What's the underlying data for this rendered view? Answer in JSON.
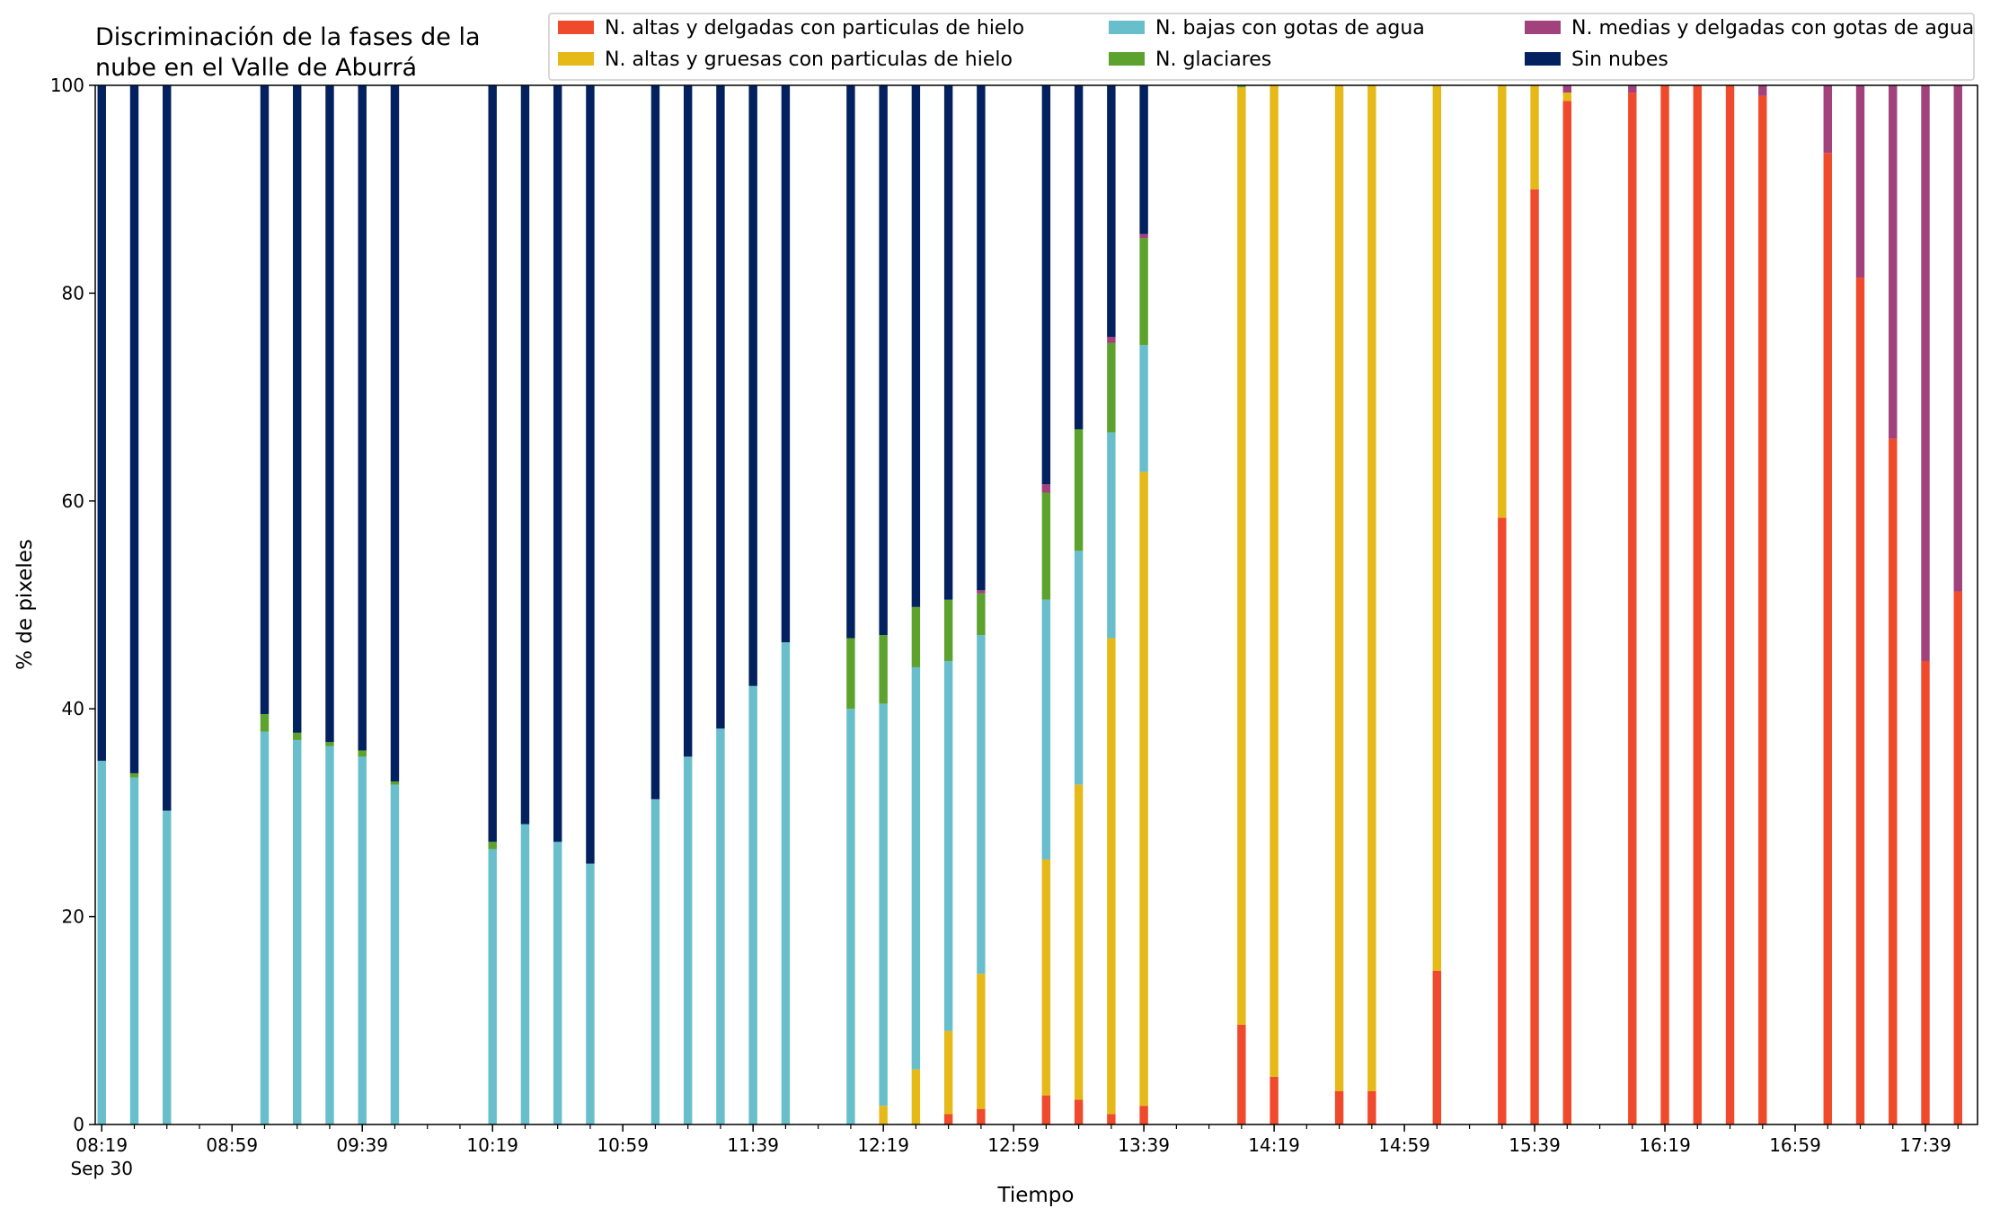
{
  "chart_data": {
    "type": "bar",
    "stacked": true,
    "title_lines": [
      "Discriminación de la fases de la",
      "nube en el Valle de Aburrá"
    ],
    "xlabel": "Tiempo",
    "ylabel": "% de pixeles",
    "ylim": [
      0,
      100
    ],
    "yticks": [
      0,
      20,
      40,
      60,
      80,
      100
    ],
    "xtick_labels": [
      "08:19",
      "08:59",
      "09:39",
      "10:19",
      "10:59",
      "11:39",
      "12:19",
      "12:59",
      "13:39",
      "14:19",
      "14:59",
      "15:39",
      "16:19",
      "16:59",
      "17:39"
    ],
    "xtick_sublabel": "Sep 30",
    "x_range": [
      "08:17",
      "17:55"
    ],
    "bar_width_minutes": 5,
    "legend_position": "top-right",
    "grid": false,
    "times": [
      "08:19",
      "08:29",
      "08:39",
      "09:09",
      "09:19",
      "09:29",
      "09:39",
      "09:49",
      "10:19",
      "10:29",
      "10:39",
      "10:49",
      "11:09",
      "11:19",
      "11:29",
      "11:39",
      "11:49",
      "12:09",
      "12:19",
      "12:29",
      "12:39",
      "12:49",
      "13:09",
      "13:19",
      "13:29",
      "13:39",
      "14:09",
      "14:19",
      "14:39",
      "14:49",
      "15:09",
      "15:29",
      "15:39",
      "15:49",
      "16:09",
      "16:19",
      "16:29",
      "16:39",
      "16:49",
      "17:09",
      "17:19",
      "17:29",
      "17:39",
      "17:49"
    ],
    "series": [
      {
        "name": "N. altas y delgadas con particulas de hielo",
        "color": "#f04a2c",
        "values": [
          0,
          0,
          0,
          0,
          0,
          0,
          0,
          0,
          0,
          0,
          0,
          0,
          0,
          0,
          0,
          0,
          0,
          0,
          0,
          0,
          1,
          1.5,
          2.8,
          2.4,
          1,
          1.8,
          9.6,
          4.6,
          3.2,
          3.2,
          14.8,
          58.4,
          90,
          98.5,
          99.3,
          100,
          100,
          100,
          99,
          93.5,
          81.5,
          66,
          44.6,
          51.3
        ]
      },
      {
        "name": "N. altas y gruesas con particulas de hielo",
        "color": "#e5b918",
        "values": [
          0,
          0,
          0,
          0,
          0,
          0,
          0,
          0,
          0,
          0,
          0,
          0,
          0,
          0,
          0,
          0,
          0,
          0,
          1.8,
          5.3,
          8,
          13,
          22.7,
          30.3,
          45.8,
          61,
          90.2,
          95.4,
          96.8,
          96.8,
          85.2,
          41.6,
          10,
          0.8,
          0,
          0,
          0,
          0,
          0,
          0,
          0,
          0,
          0,
          0
        ]
      },
      {
        "name": "N. bajas con gotas de agua",
        "color": "#68bfcb",
        "values": [
          35,
          33.4,
          30.2,
          37.8,
          37,
          36.4,
          35.4,
          32.7,
          26.5,
          28.9,
          27.2,
          25.1,
          31.3,
          35.4,
          38.1,
          42.2,
          46.4,
          40,
          38.7,
          38.7,
          35.6,
          32.6,
          25,
          22.5,
          19.8,
          12.2,
          0,
          0,
          0,
          0,
          0,
          0,
          0,
          0,
          0,
          0,
          0,
          0,
          0,
          0,
          0,
          0,
          0,
          0
        ]
      },
      {
        "name": "N. glaciares",
        "color": "#5da22e",
        "values": [
          0,
          0.4,
          0,
          1.7,
          0.7,
          0.4,
          0.6,
          0.3,
          0.7,
          0,
          0,
          0,
          0,
          0,
          0,
          0,
          0,
          6.8,
          6.6,
          5.8,
          5.9,
          4,
          10.3,
          11.7,
          8.6,
          10.3,
          0.2,
          0,
          0,
          0,
          0,
          0,
          0,
          0,
          0,
          0,
          0,
          0,
          0,
          0,
          0,
          0,
          0,
          0
        ]
      },
      {
        "name": "N. medias y delgadas con gotas de agua",
        "color": "#a1427c",
        "values": [
          0,
          0,
          0,
          0,
          0,
          0,
          0,
          0,
          0,
          0,
          0,
          0,
          0,
          0,
          0,
          0,
          0,
          0,
          0,
          0,
          0,
          0.3,
          0.8,
          0,
          0.6,
          0.4,
          0,
          0,
          0,
          0,
          0,
          0,
          0,
          0.7,
          0.7,
          0,
          0,
          0,
          1,
          6.5,
          18.5,
          34,
          55.4,
          48.7
        ]
      },
      {
        "name": "Sin nubes",
        "color": "#03215f",
        "values": [
          65,
          66.2,
          69.8,
          60.5,
          62.3,
          63.2,
          64,
          67,
          72.8,
          71.1,
          72.8,
          74.9,
          68.7,
          64.6,
          61.9,
          57.8,
          53.6,
          53.2,
          52.9,
          50.2,
          49.5,
          48.6,
          38.4,
          33.1,
          24.2,
          14.3,
          0,
          0,
          0,
          0,
          0,
          0,
          0,
          0,
          0,
          0,
          0,
          0,
          0,
          0,
          0,
          0,
          0,
          0
        ]
      }
    ]
  }
}
